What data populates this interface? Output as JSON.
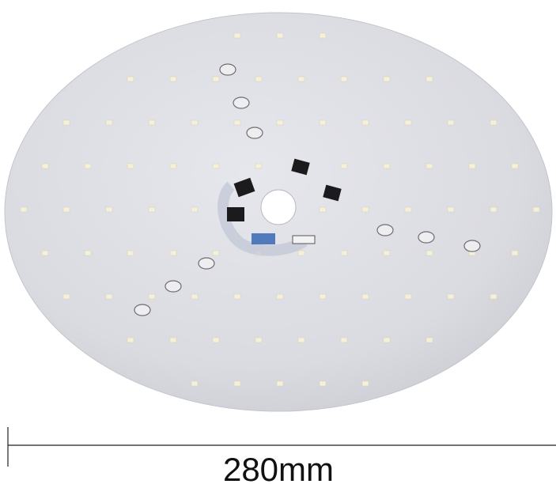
{
  "dimension_label": "280mm"
}
